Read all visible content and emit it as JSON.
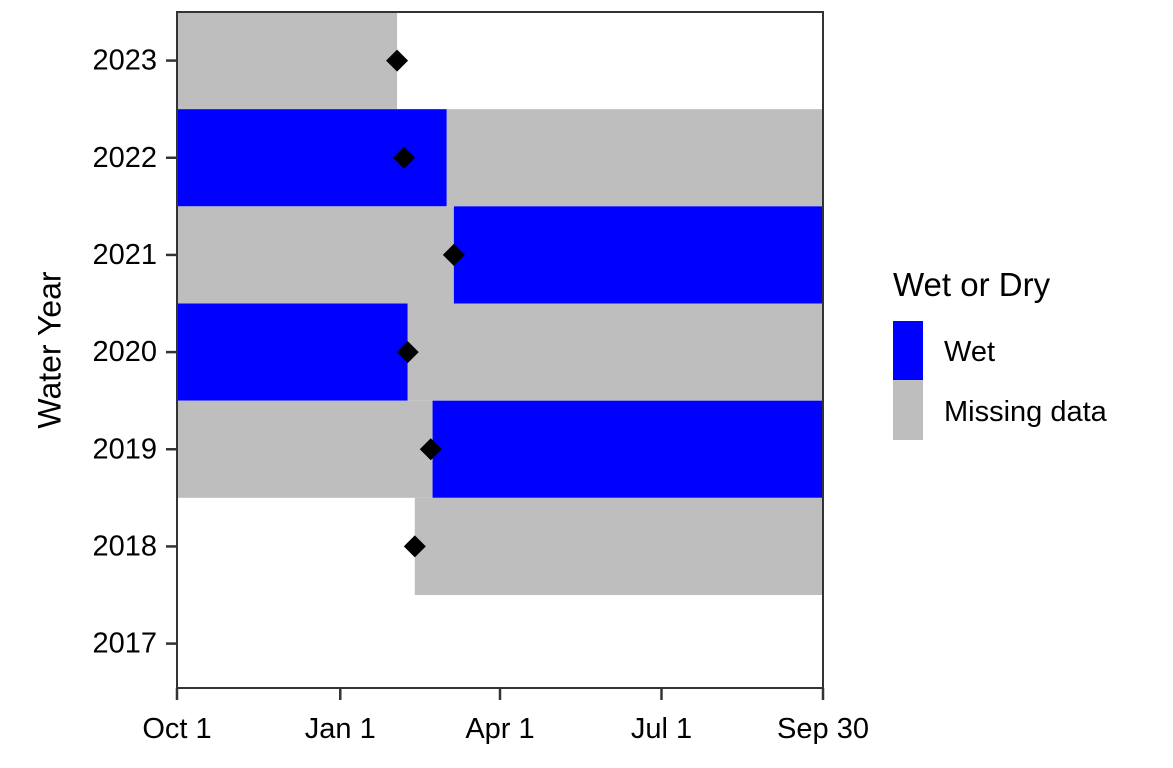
{
  "chart_data": {
    "type": "bar",
    "subtype": "horizontal-range-timeline",
    "title": "",
    "xlabel": "",
    "ylabel": "Water Year",
    "x_ticks": [
      "Oct 1",
      "Jan 1",
      "Apr 1",
      "Jul 1",
      "Sep 30"
    ],
    "x_tick_days": [
      0,
      92,
      182,
      273,
      364
    ],
    "x_range_days": [
      0,
      364
    ],
    "y_ticks": [
      "2023",
      "2022",
      "2021",
      "2020",
      "2019",
      "2018",
      "2017"
    ],
    "grid": false,
    "legend": {
      "title": "Wet or Dry",
      "position": "right",
      "entries": [
        {
          "label": "Wet",
          "color": "#0000FF"
        },
        {
          "label": "Missing data",
          "color": "#BEBEBE"
        }
      ]
    },
    "segments": [
      {
        "year": "2023",
        "start_day": 0,
        "end_day": 124,
        "status": "Missing data"
      },
      {
        "year": "2022",
        "start_day": 0,
        "end_day": 152,
        "status": "Wet"
      },
      {
        "year": "2022",
        "start_day": 152,
        "end_day": 364,
        "status": "Missing data"
      },
      {
        "year": "2021",
        "start_day": 0,
        "end_day": 156,
        "status": "Missing data"
      },
      {
        "year": "2021",
        "start_day": 156,
        "end_day": 364,
        "status": "Wet"
      },
      {
        "year": "2020",
        "start_day": 0,
        "end_day": 130,
        "status": "Wet"
      },
      {
        "year": "2020",
        "start_day": 130,
        "end_day": 364,
        "status": "Missing data"
      },
      {
        "year": "2019",
        "start_day": 0,
        "end_day": 144,
        "status": "Missing data"
      },
      {
        "year": "2019",
        "start_day": 144,
        "end_day": 364,
        "status": "Wet"
      },
      {
        "year": "2018",
        "start_day": 134,
        "end_day": 364,
        "status": "Missing data"
      }
    ],
    "markers": {
      "shape": "diamond",
      "color": "#000000",
      "points": [
        {
          "year": "2023",
          "day": 124
        },
        {
          "year": "2022",
          "day": 128
        },
        {
          "year": "2021",
          "day": 156
        },
        {
          "year": "2020",
          "day": 130
        },
        {
          "year": "2019",
          "day": 143
        },
        {
          "year": "2018",
          "day": 134
        }
      ]
    },
    "colors": {
      "Wet": "#0000FF",
      "Missing data": "#BEBEBE",
      "axis": "#333333"
    }
  }
}
